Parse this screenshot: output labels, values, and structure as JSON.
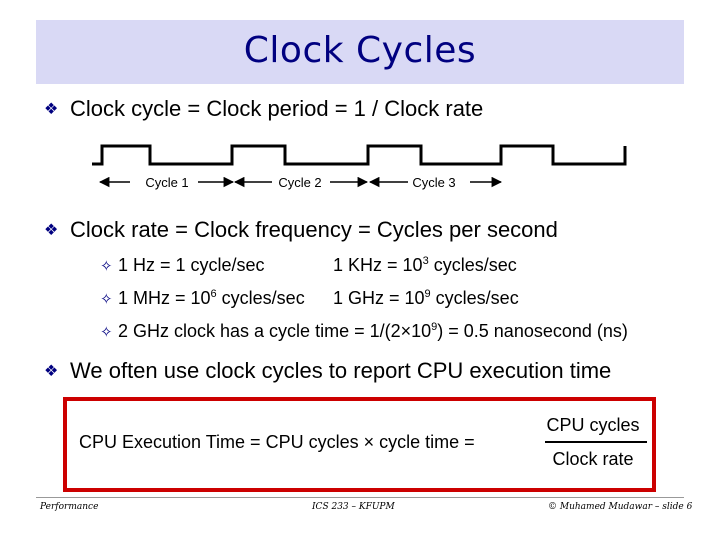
{
  "title": "Clock Cycles",
  "bullets": {
    "b1": "Clock cycle = Clock period = 1 / Clock rate",
    "b2": "Clock rate = Clock frequency = Cycles per second",
    "b3": "We often use clock cycles to report CPU execution time"
  },
  "diagram": {
    "labels": [
      "Cycle 1",
      "Cycle 2",
      "Cycle 3"
    ]
  },
  "subs": {
    "hz": "1 Hz = 1 cycle/sec",
    "khz_pre": "1 KHz = 10",
    "khz_exp": "3",
    "khz_post": " cycles/sec",
    "mhz_pre": "1 MHz = 10",
    "mhz_exp": "6",
    "mhz_post": " cycles/sec",
    "ghz_pre": "1 GHz = 10",
    "ghz_exp": "9",
    "ghz_post": " cycles/sec",
    "clock_pre": "2 GHz clock has a cycle time = 1/(2×10",
    "clock_exp": "9",
    "clock_post": ") = 0.5 nanosecond (ns)"
  },
  "formula": {
    "lhs": "CPU Execution Time  =  CPU cycles × cycle time  =",
    "numerator": "CPU cycles",
    "denominator": "Clock rate"
  },
  "footer": {
    "left": "Performance",
    "center": "ICS 233 – KFUPM",
    "right": "© Muhamed Mudawar – slide 6"
  }
}
